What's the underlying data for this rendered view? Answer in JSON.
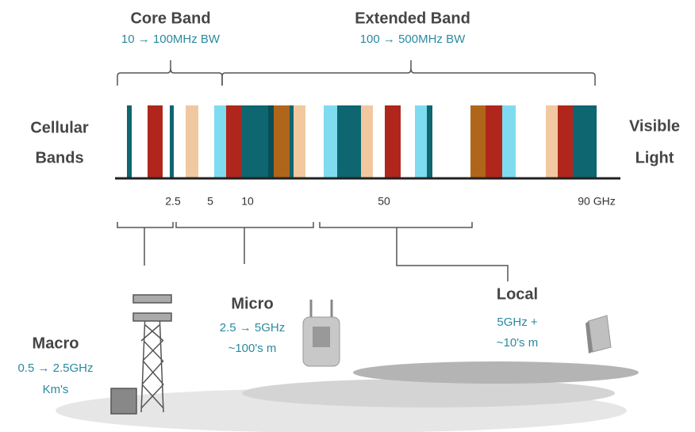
{
  "bands": [
    {
      "title": "Core Band",
      "subtitle": "10 → 100MHz BW"
    },
    {
      "title": "Extended Band",
      "subtitle": "100 → 500MHz BW"
    }
  ],
  "spectrum": {
    "left_label": [
      "Cellular",
      "Bands"
    ],
    "right_label": [
      "Visible",
      "Light"
    ],
    "axis_labels": [
      "2.5",
      "5",
      "10",
      "50",
      "90 GHz"
    ]
  },
  "cells": [
    {
      "name": "Macro",
      "details": [
        "0.5 → 2.5GHz",
        "Km's"
      ]
    },
    {
      "name": "Micro",
      "details": [
        "2.5 → 5GHz",
        "~100's m"
      ]
    },
    {
      "name": "Local",
      "details": [
        "5GHz +",
        "~10's m"
      ]
    }
  ]
}
